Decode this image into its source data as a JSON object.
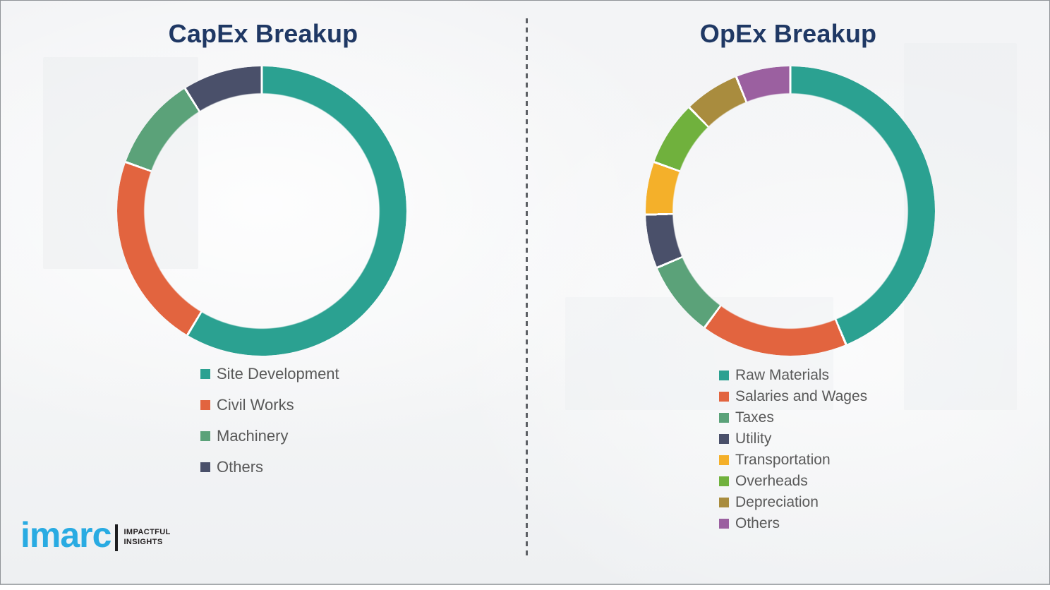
{
  "page": {
    "background_color": "#f4f5f6",
    "divider_color": "#5d6065",
    "title_color": "#1f3864",
    "legend_text_color": "#595959"
  },
  "chart_data": [
    {
      "type": "donut",
      "title": "CapEx Breakup",
      "categories": [
        "Site Development",
        "Civil Works",
        "Machinery",
        "Others"
      ],
      "values_pct_estimated": [
        58.6,
        21.9,
        10.6,
        8.9
      ],
      "colors": [
        "#2ba191",
        "#e2643f",
        "#5ba279",
        "#4a506a"
      ],
      "start_angle_deg": 0,
      "direction": "clockwise",
      "hole": true,
      "data_labels_shown": false,
      "legend_position": "below-left"
    },
    {
      "type": "donut",
      "title": "OpEx Breakup",
      "categories": [
        "Raw Materials",
        "Salaries and Wages",
        "Taxes",
        "Utility",
        "Transportation",
        "Overheads",
        "Depreciation",
        "Others"
      ],
      "values_pct_estimated": [
        43.7,
        16.4,
        8.5,
        6.0,
        5.9,
        7.2,
        6.2,
        6.1
      ],
      "colors": [
        "#2ba191",
        "#e2643f",
        "#5ba279",
        "#4a506a",
        "#f4b02a",
        "#70b13d",
        "#a98c3e",
        "#9b60a0"
      ],
      "start_angle_deg": 0,
      "direction": "clockwise",
      "hole": true,
      "data_labels_shown": false,
      "legend_position": "below-left"
    }
  ],
  "logo": {
    "wordmark": "imarc",
    "wordmark_color": "#29abe2",
    "bar_color": "#1d1d1f",
    "tagline_line1": "IMPACTFUL",
    "tagline_line2": "INSIGHTS",
    "tagline_color": "#231f20"
  }
}
